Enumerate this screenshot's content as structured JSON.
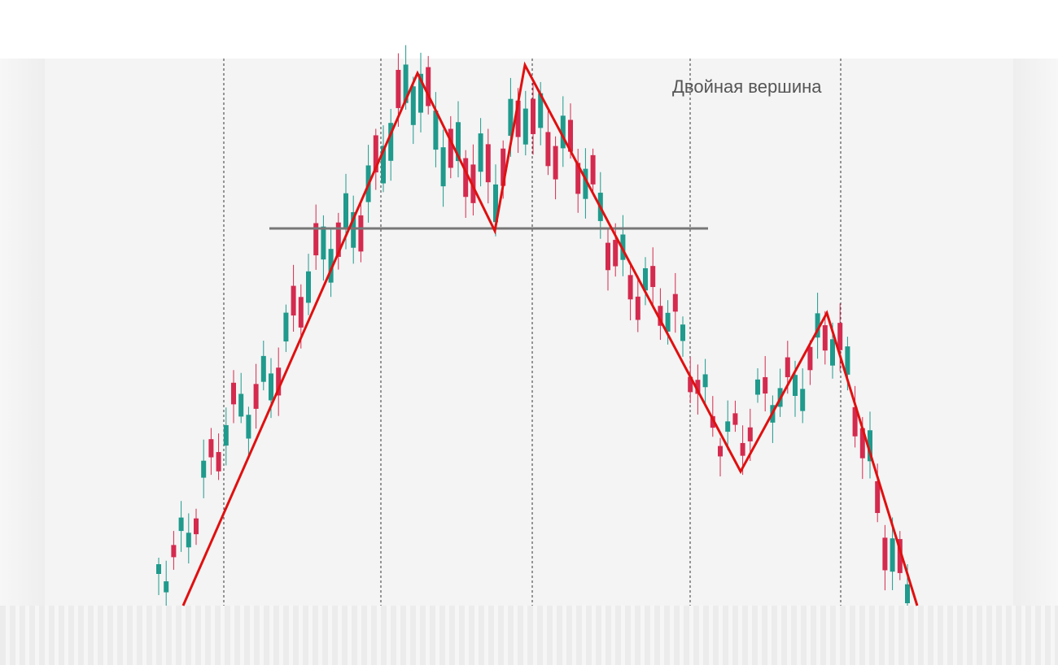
{
  "annotation": {
    "text": "Двойная вершина"
  }
}
